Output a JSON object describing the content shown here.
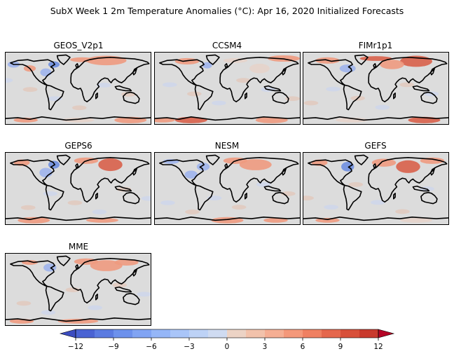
{
  "title": "SubX Week 1 2m Temperature Anomalies (°C): Apr 16, 2020 Initialized Forecasts",
  "panels": [
    {
      "name": "GEOS_V2p1"
    },
    {
      "name": "CCSM4"
    },
    {
      "name": "FIMr1p1"
    },
    {
      "name": "GEPS6"
    },
    {
      "name": "NESM"
    },
    {
      "name": "GEFS"
    },
    {
      "name": "MME"
    }
  ],
  "colorbar": {
    "min": -12,
    "max": 12,
    "step": 1.5,
    "ticks": [
      "−12",
      "−9",
      "−6",
      "−3",
      "0",
      "3",
      "6",
      "9",
      "12"
    ],
    "colormap": "coolwarm",
    "extend": "both"
  },
  "colors": {
    "neutral": "#dcdcdc",
    "cold": "#3b4cc0",
    "warm": "#b40426"
  }
}
